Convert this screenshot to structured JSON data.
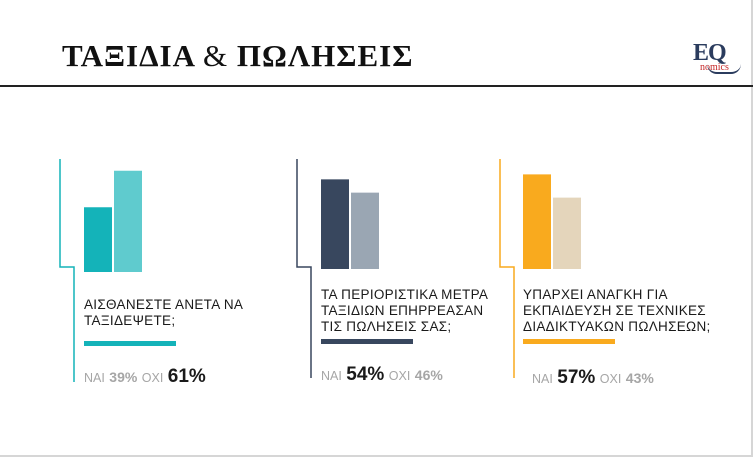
{
  "header": {
    "title_part1": "ΤΑΞΙΔΙΑ",
    "title_amp": "&",
    "title_part2": "ΠΩΛΗΣΕΙΣ",
    "logo_main": "EQ",
    "logo_sub": "nomics"
  },
  "chart_data": [
    {
      "type": "bar",
      "categories": [
        "ΝΑΙ",
        "ΟΧΙ"
      ],
      "values": [
        39,
        61
      ],
      "colors": [
        "#14b3b9",
        "#5fcbce"
      ],
      "accent": "#14b3b9",
      "question": [
        "ΑΙΣΘΑΝΕΣΤΕ ΑΝΕΤΑ ΝΑ",
        "ΤΑΞΙΔΕΨΕΤΕ;"
      ],
      "yes_label": "ΝΑΙ",
      "yes_value": "39%",
      "no_label": "ΟΧΙ",
      "no_value": "61%"
    },
    {
      "type": "bar",
      "categories": [
        "ΝΑΙ",
        "ΟΧΙ"
      ],
      "values": [
        54,
        46
      ],
      "colors": [
        "#38475e",
        "#9aa6b3"
      ],
      "accent": "#38475e",
      "question": [
        "ΤΑ ΠΕΡΙΟΡΙΣΤΙΚΑ ΜΕΤΡΑ",
        "ΤΑΞΙΔΙΩΝ ΕΠΗΡΡΕΑΣΑΝ",
        "ΤΙΣ ΠΩΛΗΣΕΙΣ ΣΑΣ;"
      ],
      "yes_label": "ΝΑΙ",
      "yes_value": "54%",
      "no_label": "ΟΧΙ",
      "no_value": "46%"
    },
    {
      "type": "bar",
      "categories": [
        "ΝΑΙ",
        "ΟΧΙ"
      ],
      "values": [
        57,
        43
      ],
      "colors": [
        "#f9aa1e",
        "#e4d5bb"
      ],
      "accent": "#f9aa1e",
      "question": [
        "ΥΠΑΡΧΕΙ ΑΝΑΓΚΗ ΓΙΑ",
        "ΕΚΠΑΙΔΕΥΣΗ ΣΕ ΤΕΧΝΙΚΕΣ",
        "ΔΙΑΔΙΚΤΥΑΚΩΝ ΠΩΛΗΣΕΩΝ;"
      ],
      "yes_label": "ΝΑΙ",
      "yes_value": "57%",
      "no_label": "ΟΧΙ",
      "no_value": "43%"
    }
  ]
}
